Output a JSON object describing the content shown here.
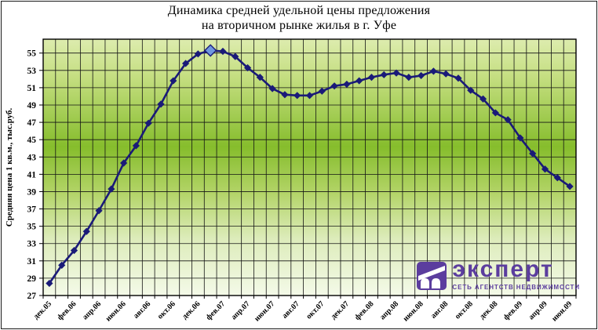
{
  "window": {
    "background": "#ffffff",
    "frame_color": "#1a1a1a"
  },
  "chart_data": {
    "type": "line",
    "title_line1": "Динамика средней удельной цены предложения",
    "title_line2": "на вторичном рынке жилья в г. Уфе",
    "ylabel": "Средняя цена 1 кв.м., тыс.руб.",
    "x": [
      "дек.05",
      "янв.06",
      "фев.06",
      "мар.06",
      "апр.06",
      "май.06",
      "июн.06",
      "июл.06",
      "авг.06",
      "сен.06",
      "окт.06",
      "ноя.06",
      "дек.06",
      "янв.07",
      "фев.07",
      "мар.07",
      "апр.07",
      "май.07",
      "июн.07",
      "июл.07",
      "авг.07",
      "сен.07",
      "окт.07",
      "ноя.07",
      "дек.07",
      "янв.08",
      "фев.08",
      "мар.08",
      "апр.08",
      "май.08",
      "июн.08",
      "июл.08",
      "авг.08",
      "сен.08",
      "окт.08",
      "ноя.08",
      "дек.08",
      "янв.09",
      "фев.09",
      "мар.09",
      "апр.09",
      "май.09",
      "июн.09"
    ],
    "x_tick_labels": [
      "дек.05",
      "фев.06",
      "апр.06",
      "июн.06",
      "авг.06",
      "окт.06",
      "дек.06",
      "фев.07",
      "апр.07",
      "июн.07",
      "авг.07",
      "окт.07",
      "дек.07",
      "фев.08",
      "апр.08",
      "июн.08",
      "авг.08",
      "окт.08",
      "дек.08",
      "фев.09",
      "апр.09",
      "июн.09"
    ],
    "values": [
      28.4,
      30.5,
      32.2,
      34.4,
      36.8,
      39.3,
      42.3,
      44.3,
      46.9,
      49.1,
      51.8,
      53.8,
      54.9,
      55.3,
      55.2,
      54.6,
      53.3,
      52.2,
      50.9,
      50.2,
      50.1,
      50.1,
      50.6,
      51.2,
      51.4,
      51.8,
      52.2,
      52.5,
      52.7,
      52.2,
      52.4,
      52.9,
      52.6,
      52.1,
      50.7,
      49.7,
      48.1,
      47.3,
      45.2,
      43.4,
      41.6,
      40.6,
      39.6
    ],
    "highlight_index": 13,
    "yticks": [
      27,
      29,
      31,
      33,
      35,
      37,
      39,
      41,
      43,
      45,
      47,
      49,
      51,
      53,
      55
    ],
    "ylim": [
      27,
      56.6
    ],
    "grid": "on",
    "legend": "none",
    "line_color": "#1a1a78",
    "marker_color": "#1a1a78",
    "highlight_marker_color": "#6f97e0",
    "grid_color": "#141414",
    "plot_border_color": "#000000",
    "plot_gradient": [
      {
        "offset": "0%",
        "color": "#ddecae"
      },
      {
        "offset": "15%",
        "color": "#c4de80"
      },
      {
        "offset": "42%",
        "color": "#86bd2c"
      },
      {
        "offset": "60%",
        "color": "#b3d468"
      },
      {
        "offset": "78%",
        "color": "#ddecbb"
      },
      {
        "offset": "100%",
        "color": "#f4fae8"
      }
    ]
  },
  "logo": {
    "name": "эксперт",
    "subtitle": "СЕТЬ АГЕНТСТВ НЕДВИЖИМОСТИ",
    "color": "#5b3d9e"
  }
}
